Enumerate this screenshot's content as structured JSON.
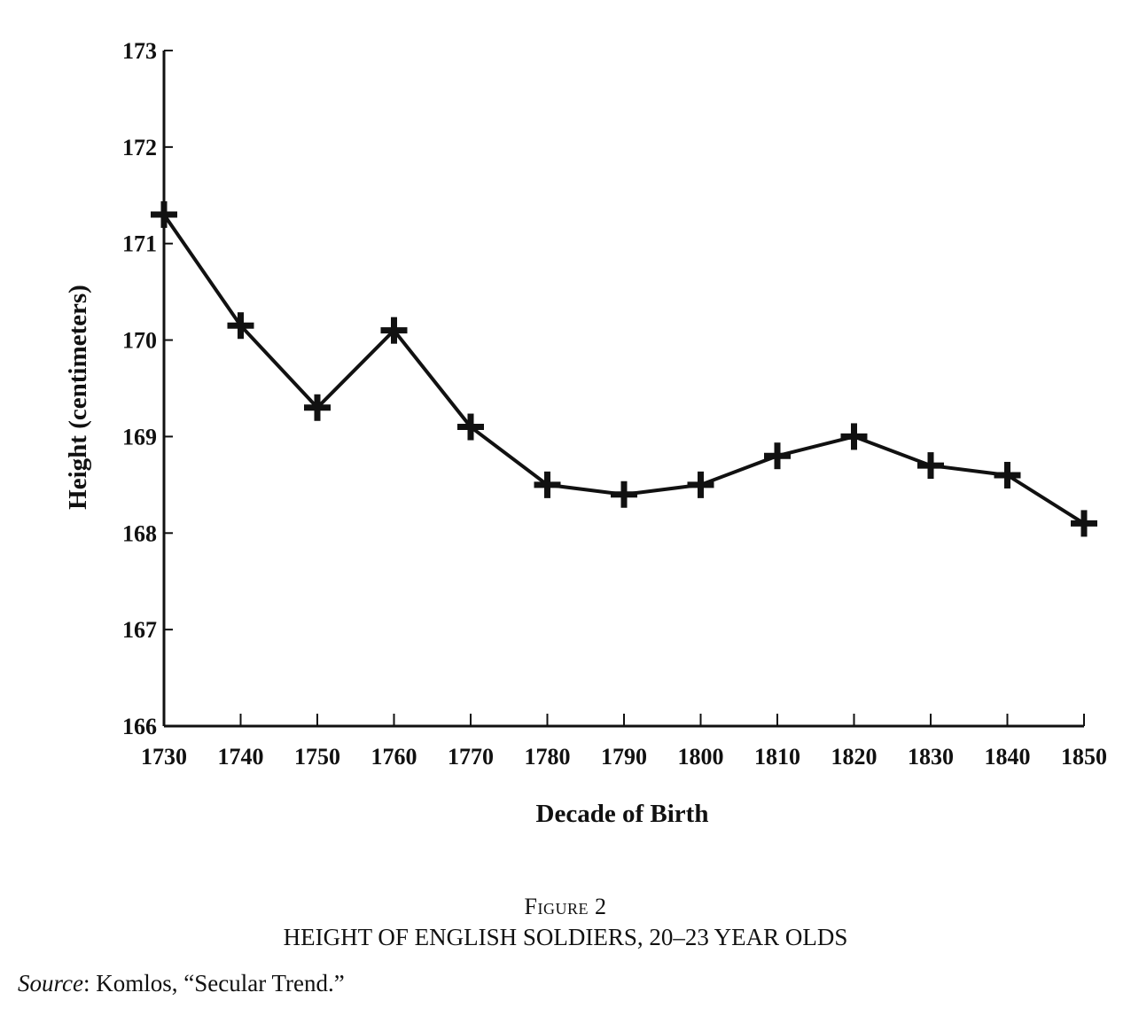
{
  "chart_data": {
    "type": "line",
    "title": "",
    "xlabel": "Decade of Birth",
    "ylabel": "Height (centimeters)",
    "x": [
      1730,
      1740,
      1750,
      1760,
      1770,
      1780,
      1790,
      1800,
      1810,
      1820,
      1830,
      1840,
      1850
    ],
    "xticks": [
      "1730",
      "1740",
      "1750",
      "1760",
      "1770",
      "1780",
      "1790",
      "1800",
      "1810",
      "1820",
      "1830",
      "1840",
      "1850"
    ],
    "yticks": [
      "166",
      "167",
      "168",
      "169",
      "170",
      "171",
      "172",
      "173"
    ],
    "xlim": [
      1730,
      1850
    ],
    "ylim": [
      166,
      173
    ],
    "grid": false,
    "marker": "plus",
    "series": [
      {
        "values": [
          171.3,
          170.15,
          169.3,
          170.1,
          169.1,
          168.5,
          168.4,
          168.5,
          168.8,
          169.0,
          168.7,
          168.6,
          168.1
        ]
      }
    ]
  },
  "caption": {
    "figure_label": "Figure 2",
    "title": "HEIGHT OF ENGLISH SOLDIERS, 20–23 YEAR OLDS",
    "source_label": "Source",
    "source_text": ": Komlos, “Secular Trend.”"
  }
}
